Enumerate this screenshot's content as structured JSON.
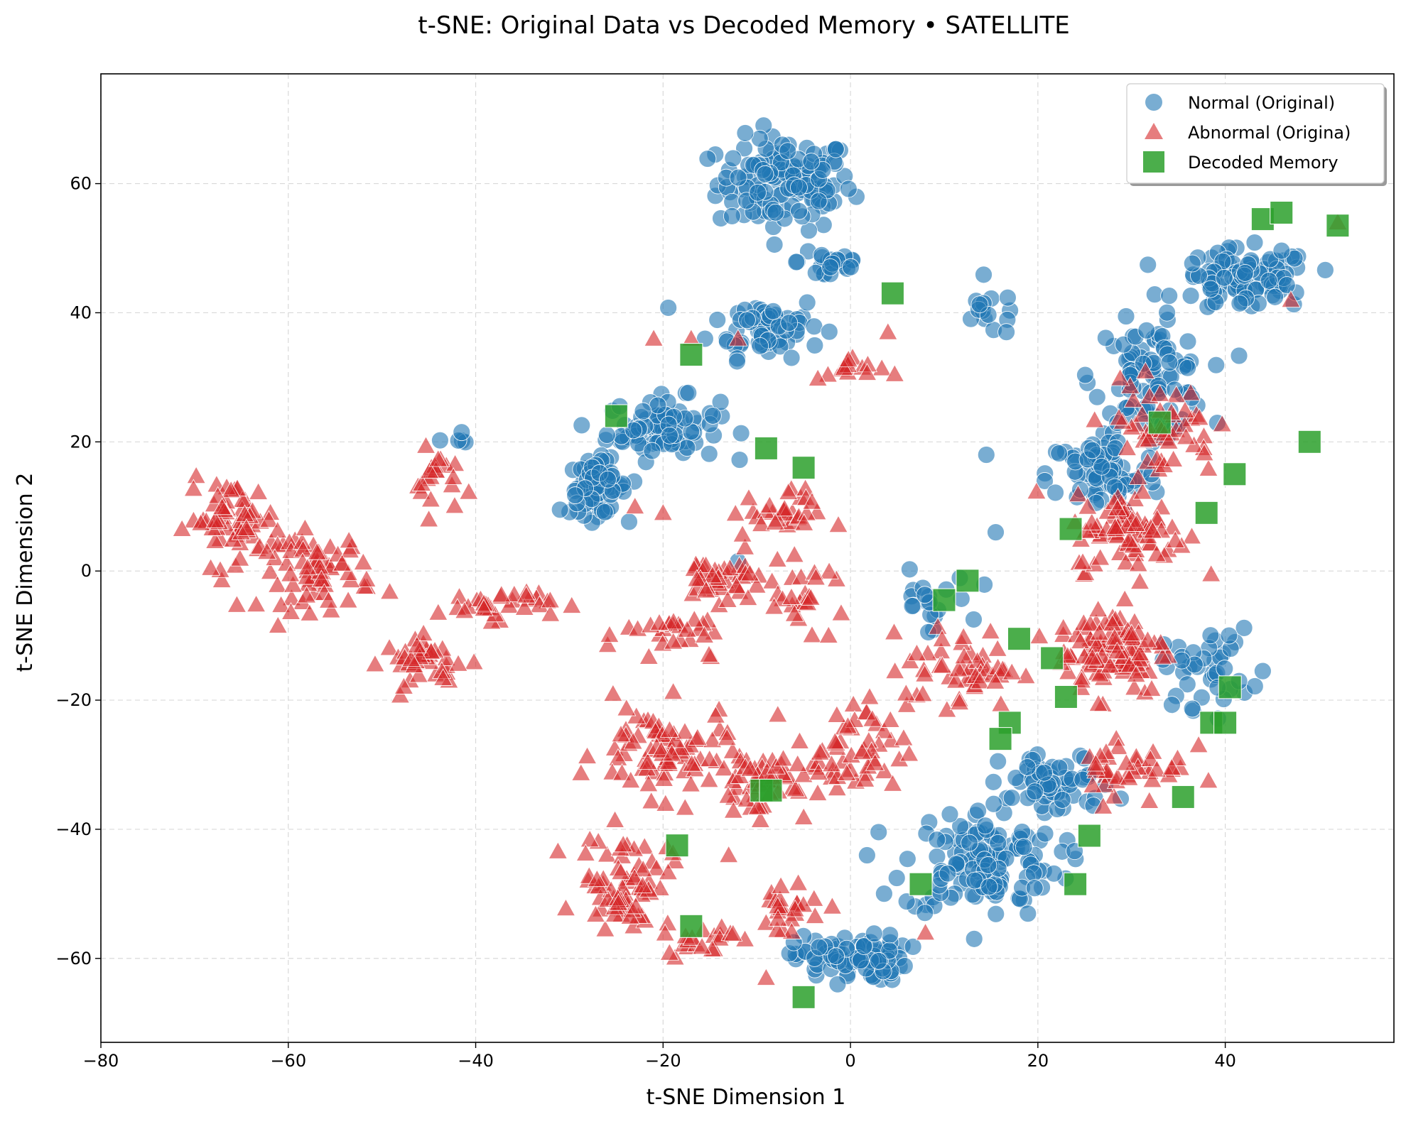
{
  "chart_data": {
    "type": "scatter",
    "title": "t-SNE: Original Data vs Decoded Memory • SATELLITE",
    "xlabel": "t-SNE Dimension 1",
    "ylabel": "t-SNE Dimension 2",
    "xlim": [
      -80,
      58
    ],
    "ylim": [
      -73,
      77
    ],
    "xticks": [
      -80,
      -60,
      -40,
      -20,
      0,
      20,
      40
    ],
    "yticks": [
      -60,
      -40,
      -20,
      0,
      20,
      40,
      60
    ],
    "xtick_labels": [
      "−80",
      "−60",
      "−40",
      "−20",
      "0",
      "20",
      "40"
    ],
    "ytick_labels": [
      "−60",
      "−40",
      "−20",
      "0",
      "20",
      "40",
      "60"
    ],
    "grid": true,
    "legend_position": "top-right",
    "series": [
      {
        "name": "Normal (Original)",
        "marker": "circle",
        "color": "#1f77b4",
        "clusters": [
          {
            "center": [
              -7,
              60
            ],
            "spread": [
              6,
              6
            ],
            "count": 130
          },
          {
            "center": [
              -9,
              38
            ],
            "spread": [
              5,
              4
            ],
            "count": 60
          },
          {
            "center": [
              -20,
              22
            ],
            "spread": [
              5,
              4
            ],
            "count": 80
          },
          {
            "center": [
              -27,
              13
            ],
            "spread": [
              2.5,
              3.5
            ],
            "count": 70
          },
          {
            "center": [
              -2,
              48
            ],
            "spread": [
              3,
              3
            ],
            "count": 25
          },
          {
            "center": [
              15,
              40
            ],
            "spread": [
              3,
              3
            ],
            "count": 15
          },
          {
            "center": [
              42,
              45
            ],
            "spread": [
              6,
              4
            ],
            "count": 100
          },
          {
            "center": [
              32,
              30
            ],
            "spread": [
              5,
              7
            ],
            "count": 90
          },
          {
            "center": [
              27,
              15
            ],
            "spread": [
              5,
              5
            ],
            "count": 70
          },
          {
            "center": [
              14,
              -45
            ],
            "spread": [
              7,
              7
            ],
            "count": 130
          },
          {
            "center": [
              0,
              -60
            ],
            "spread": [
              5,
              3
            ],
            "count": 90
          },
          {
            "center": [
              22,
              -33
            ],
            "spread": [
              5,
              4
            ],
            "count": 60
          },
          {
            "center": [
              38,
              -15
            ],
            "spread": [
              4,
              5
            ],
            "count": 40
          },
          {
            "center": [
              8,
              -5
            ],
            "spread": [
              4,
              4
            ],
            "count": 20
          },
          {
            "center": [
              -42,
              20
            ],
            "spread": [
              1,
              1
            ],
            "count": 4
          }
        ],
        "points": [
          [
            -41.5,
            21.5
          ],
          [
            14.5,
            18
          ],
          [
            15.5,
            6
          ],
          [
            44,
            -15.5
          ],
          [
            -31,
            9.5
          ],
          [
            -12,
            1.5
          ]
        ]
      },
      {
        "name": "Abnormal (Origina)",
        "marker": "triangle",
        "color": "#d62728",
        "clusters": [
          {
            "center": [
              -66,
              8
            ],
            "spread": [
              4,
              5
            ],
            "count": 60
          },
          {
            "center": [
              -57,
              0
            ],
            "spread": [
              5,
              5
            ],
            "count": 70
          },
          {
            "center": [
              -45,
              -14
            ],
            "spread": [
              4,
              3
            ],
            "count": 40
          },
          {
            "center": [
              -38,
              -5
            ],
            "spread": [
              5,
              2
            ],
            "count": 35
          },
          {
            "center": [
              -44,
              14
            ],
            "spread": [
              2,
              4
            ],
            "count": 20
          },
          {
            "center": [
              -14,
              -1
            ],
            "spread": [
              4,
              3
            ],
            "count": 40
          },
          {
            "center": [
              -5,
              -4
            ],
            "spread": [
              4,
              4
            ],
            "count": 25
          },
          {
            "center": [
              -18,
              -10
            ],
            "spread": [
              5,
              4
            ],
            "count": 30
          },
          {
            "center": [
              -20,
              -28
            ],
            "spread": [
              6,
              6
            ],
            "count": 80
          },
          {
            "center": [
              -24,
              -48
            ],
            "spread": [
              4,
              6
            ],
            "count": 70
          },
          {
            "center": [
              -10,
              -33
            ],
            "spread": [
              5,
              4
            ],
            "count": 50
          },
          {
            "center": [
              -8,
              9
            ],
            "spread": [
              4,
              3
            ],
            "count": 30
          },
          {
            "center": [
              0,
              31
            ],
            "spread": [
              3,
              2
            ],
            "count": 15
          },
          {
            "center": [
              0,
              -28
            ],
            "spread": [
              5,
              6
            ],
            "count": 50
          },
          {
            "center": [
              12,
              -15
            ],
            "spread": [
              5,
              5
            ],
            "count": 50
          },
          {
            "center": [
              28,
              -12
            ],
            "spread": [
              5,
              6
            ],
            "count": 100
          },
          {
            "center": [
              30,
              6
            ],
            "spread": [
              5,
              5
            ],
            "count": 80
          },
          {
            "center": [
              30,
              -30
            ],
            "spread": [
              5,
              5
            ],
            "count": 40
          },
          {
            "center": [
              33,
              22
            ],
            "spread": [
              5,
              6
            ],
            "count": 50
          },
          {
            "center": [
              -7,
              -52
            ],
            "spread": [
              4,
              4
            ],
            "count": 25
          },
          {
            "center": [
              -16,
              -57
            ],
            "spread": [
              3,
              2
            ],
            "count": 20
          }
        ],
        "points": [
          [
            -45,
            8
          ],
          [
            -21,
            36
          ],
          [
            -17,
            36
          ],
          [
            -12,
            36
          ],
          [
            4,
            37
          ],
          [
            47,
            42
          ],
          [
            -23,
            10
          ],
          [
            -20,
            9
          ],
          [
            8,
            -56
          ],
          [
            -9,
            -63
          ],
          [
            -13,
            -44
          ],
          [
            52,
            54
          ]
        ]
      },
      {
        "name": "Decoded Memory",
        "marker": "square",
        "color": "#2ca02c",
        "points": [
          [
            4.5,
            43
          ],
          [
            -17,
            33.5
          ],
          [
            -25,
            24
          ],
          [
            -9,
            19
          ],
          [
            -5,
            16
          ],
          [
            44,
            54.5
          ],
          [
            46,
            55.5
          ],
          [
            52,
            53.5
          ],
          [
            33,
            23
          ],
          [
            49,
            20
          ],
          [
            41,
            15
          ],
          [
            38,
            9
          ],
          [
            23.5,
            6.5
          ],
          [
            10,
            -4.5
          ],
          [
            12.5,
            -1.5
          ],
          [
            18,
            -10.5
          ],
          [
            21.5,
            -13.5
          ],
          [
            23,
            -19.5
          ],
          [
            17,
            -23.5
          ],
          [
            16,
            -26
          ],
          [
            40.5,
            -18
          ],
          [
            38.5,
            -23.5
          ],
          [
            40,
            -23.5
          ],
          [
            35.5,
            -35
          ],
          [
            -9.5,
            -34
          ],
          [
            -8.5,
            -34
          ],
          [
            -18.5,
            -42.5
          ],
          [
            25.5,
            -41
          ],
          [
            7.5,
            -48.5
          ],
          [
            24,
            -48.5
          ],
          [
            -17,
            -55
          ],
          [
            -5,
            -66
          ]
        ]
      }
    ]
  }
}
